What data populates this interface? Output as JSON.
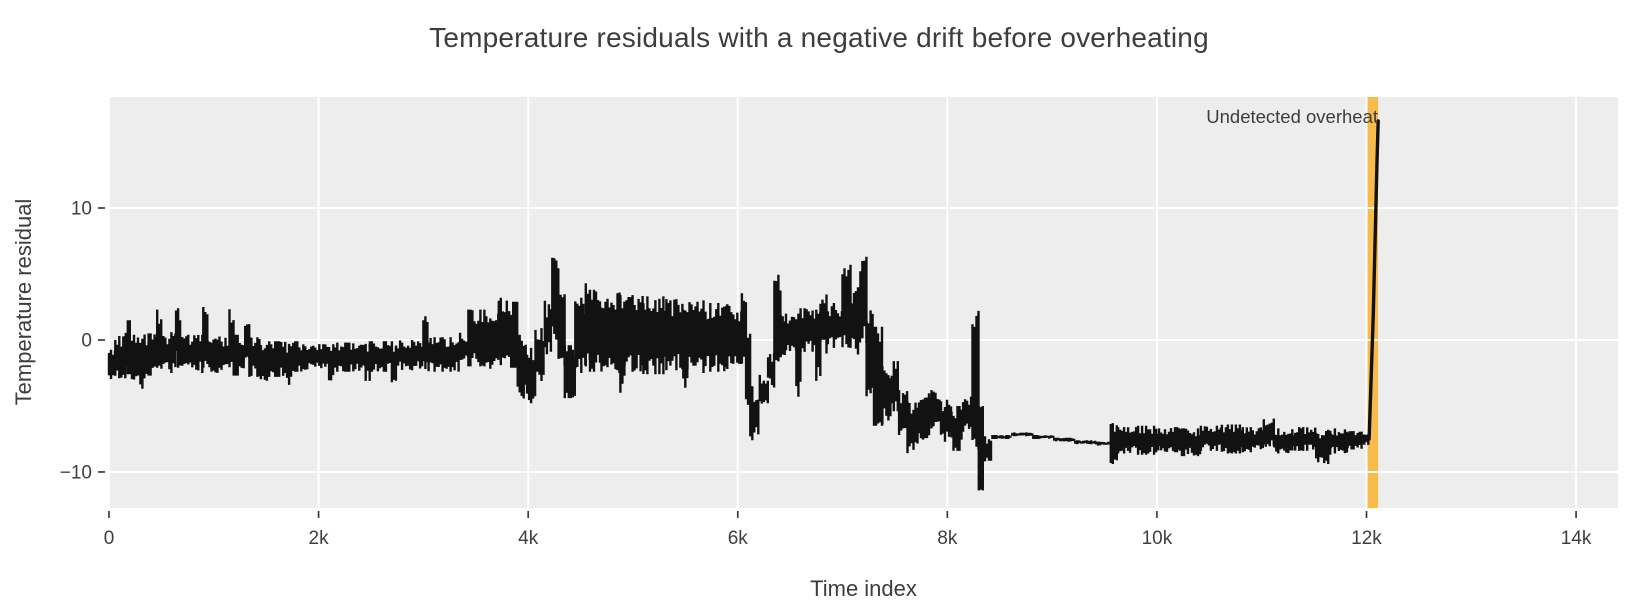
{
  "chart_data": {
    "type": "line",
    "title": "Temperature residuals with a negative drift before overheating",
    "xlabel": "Time index",
    "ylabel": "Temperature residual",
    "legend": "none",
    "grid": true,
    "plot_bgcolor": "#ededed",
    "grid_color": "#ffffff",
    "tick_color": "#3f3f3f",
    "line_color": "#121212",
    "xlim": [
      0,
      14400
    ],
    "ylim": [
      -12.73,
      18.41
    ],
    "x_ticks": [
      {
        "v": 0,
        "label": "0"
      },
      {
        "v": 2000,
        "label": "2k"
      },
      {
        "v": 4000,
        "label": "4k"
      },
      {
        "v": 6000,
        "label": "6k"
      },
      {
        "v": 8000,
        "label": "8k"
      },
      {
        "v": 10000,
        "label": "10k"
      },
      {
        "v": 12000,
        "label": "12k"
      },
      {
        "v": 14000,
        "label": "14k"
      }
    ],
    "y_ticks": [
      {
        "v": -10,
        "label": "−10"
      },
      {
        "v": 0,
        "label": "0"
      },
      {
        "v": 10,
        "label": "10"
      }
    ],
    "band": {
      "x0": 12000,
      "x1": 12110,
      "color": "#f8bb4b",
      "label": "undetected overheat window"
    },
    "annotation": {
      "text": "Undetected overheat",
      "x": 12110,
      "y": 16.9,
      "anchor": "end",
      "color": "#3d3d3d"
    },
    "series": [
      {
        "name": "Temperature residual",
        "color": "#121212",
        "envelope_format": [
          "x_start",
          "x_end",
          "y_min",
          "y_max"
        ],
        "envelope": [
          [
            0,
            60,
            -3.4,
            -0.6
          ],
          [
            60,
            160,
            -2.9,
            0.3
          ],
          [
            160,
            200,
            -2.6,
            1.5
          ],
          [
            200,
            300,
            -3.0,
            0.4
          ],
          [
            300,
            340,
            -3.7,
            0.1
          ],
          [
            340,
            460,
            -2.7,
            0.5
          ],
          [
            460,
            500,
            -2.1,
            2.3
          ],
          [
            500,
            640,
            -2.5,
            0.6
          ],
          [
            640,
            680,
            -2.1,
            2.4
          ],
          [
            680,
            900,
            -2.5,
            0.4
          ],
          [
            900,
            940,
            -2.1,
            2.5
          ],
          [
            940,
            1150,
            -2.6,
            0.3
          ],
          [
            1150,
            1190,
            -2.3,
            2.6
          ],
          [
            1190,
            1300,
            -2.7,
            0.4
          ],
          [
            1300,
            1340,
            -2.4,
            1.6
          ],
          [
            1340,
            1450,
            -2.8,
            0.2
          ],
          [
            1450,
            1510,
            -3.6,
            0.1
          ],
          [
            1510,
            1700,
            -2.8,
            -0.1
          ],
          [
            1700,
            1740,
            -3.4,
            -0.3
          ],
          [
            1740,
            2100,
            -2.4,
            -0.1
          ],
          [
            2100,
            2140,
            -3.3,
            -0.4
          ],
          [
            2140,
            2450,
            -2.4,
            -0.2
          ],
          [
            2450,
            2490,
            -3.1,
            -0.3
          ],
          [
            2490,
            2700,
            -2.4,
            -0.1
          ],
          [
            2700,
            2740,
            -3.2,
            -0.3
          ],
          [
            2740,
            3000,
            -2.3,
            0.0
          ],
          [
            3000,
            3050,
            -2.2,
            1.8
          ],
          [
            3050,
            3350,
            -2.4,
            0.2
          ],
          [
            3350,
            3430,
            -1.9,
            0.6
          ],
          [
            3430,
            3600,
            -2.0,
            2.3
          ],
          [
            3600,
            3720,
            -2.2,
            2.6
          ],
          [
            3720,
            3800,
            -1.9,
            3.2
          ],
          [
            3800,
            3900,
            -2.1,
            2.9
          ],
          [
            3900,
            3990,
            -4.5,
            0.4
          ],
          [
            3990,
            4070,
            -4.8,
            -0.6
          ],
          [
            4070,
            4160,
            -3.3,
            1.2
          ],
          [
            4160,
            4230,
            -1.4,
            3.0
          ],
          [
            4230,
            4290,
            -0.2,
            6.6
          ],
          [
            4290,
            4350,
            -2.2,
            4.0
          ],
          [
            4350,
            4450,
            -4.4,
            -0.4
          ],
          [
            4450,
            4550,
            -2.5,
            3.2
          ],
          [
            4550,
            4590,
            -2.0,
            4.3
          ],
          [
            4590,
            4700,
            -2.4,
            3.8
          ],
          [
            4700,
            4880,
            -2.5,
            3.6
          ],
          [
            4880,
            4920,
            -4.0,
            3.4
          ],
          [
            4920,
            5100,
            -2.4,
            3.4
          ],
          [
            5100,
            5300,
            -2.6,
            3.3
          ],
          [
            5300,
            5480,
            -2.3,
            3.1
          ],
          [
            5480,
            5520,
            -3.7,
            3.0
          ],
          [
            5520,
            5700,
            -2.5,
            3.0
          ],
          [
            5700,
            5900,
            -2.4,
            2.8
          ],
          [
            5900,
            6040,
            -2.2,
            2.7
          ],
          [
            6040,
            6080,
            -2.0,
            4.0
          ],
          [
            6080,
            6120,
            -5.0,
            0.5
          ],
          [
            6120,
            6210,
            -7.6,
            -3.5
          ],
          [
            6210,
            6290,
            -5.2,
            -2.6
          ],
          [
            6290,
            6350,
            -3.6,
            -1.0
          ],
          [
            6350,
            6410,
            -2.0,
            5.0
          ],
          [
            6410,
            6460,
            -1.4,
            2.1
          ],
          [
            6460,
            6560,
            -1.0,
            2.2
          ],
          [
            6560,
            6600,
            -4.3,
            2.0
          ],
          [
            6600,
            6750,
            -0.9,
            2.4
          ],
          [
            6750,
            6790,
            -3.1,
            2.3
          ],
          [
            6790,
            6860,
            -1.1,
            3.7
          ],
          [
            6860,
            7000,
            -0.6,
            2.8
          ],
          [
            7000,
            7090,
            -0.6,
            5.7
          ],
          [
            7090,
            7170,
            -1.1,
            4.0
          ],
          [
            7170,
            7230,
            -0.2,
            6.3
          ],
          [
            7230,
            7300,
            -4.7,
            2.5
          ],
          [
            7300,
            7380,
            -6.5,
            1.0
          ],
          [
            7380,
            7470,
            -6.4,
            -2.0
          ],
          [
            7470,
            7540,
            -5.4,
            -1.6
          ],
          [
            7540,
            7620,
            -7.2,
            -3.8
          ],
          [
            7620,
            7730,
            -8.6,
            -4.5
          ],
          [
            7730,
            7830,
            -7.7,
            -4.0
          ],
          [
            7830,
            7940,
            -6.7,
            -3.8
          ],
          [
            7940,
            8040,
            -7.9,
            -4.4
          ],
          [
            8040,
            8150,
            -8.4,
            -5.0
          ],
          [
            8150,
            8240,
            -7.0,
            -4.2
          ],
          [
            8240,
            8300,
            -8.3,
            2.2
          ],
          [
            8300,
            8340,
            -11.4,
            -5.0
          ],
          [
            8340,
            8430,
            -9.2,
            -7.3
          ],
          [
            8430,
            8620,
            -7.5,
            -7.2
          ],
          [
            8620,
            8820,
            -7.3,
            -7.0
          ],
          [
            8820,
            9020,
            -7.5,
            -7.2
          ],
          [
            9020,
            9220,
            -7.7,
            -7.4
          ],
          [
            9220,
            9420,
            -7.9,
            -7.6
          ],
          [
            9420,
            9560,
            -8.0,
            -7.7
          ],
          [
            9560,
            9630,
            -9.4,
            -6.3
          ],
          [
            9630,
            9820,
            -8.6,
            -6.6
          ],
          [
            9820,
            10020,
            -8.7,
            -6.5
          ],
          [
            10020,
            10220,
            -8.5,
            -6.6
          ],
          [
            10220,
            10420,
            -8.8,
            -6.7
          ],
          [
            10420,
            10620,
            -8.4,
            -6.5
          ],
          [
            10620,
            10820,
            -8.6,
            -6.4
          ],
          [
            10820,
            11020,
            -8.5,
            -6.6
          ],
          [
            11020,
            11120,
            -8.3,
            -5.8
          ],
          [
            11120,
            11320,
            -8.6,
            -6.7
          ],
          [
            11320,
            11520,
            -8.4,
            -6.6
          ],
          [
            11520,
            11660,
            -9.4,
            -6.8
          ],
          [
            11660,
            11820,
            -8.6,
            -6.7
          ],
          [
            11820,
            11960,
            -8.3,
            -6.9
          ],
          [
            11960,
            12030,
            -8.0,
            -7.1
          ]
        ],
        "terminal_spike": [
          [
            12025,
            -7.5
          ],
          [
            12065,
            2.0
          ],
          [
            12100,
            13.5
          ],
          [
            12112,
            16.6
          ]
        ]
      }
    ]
  }
}
